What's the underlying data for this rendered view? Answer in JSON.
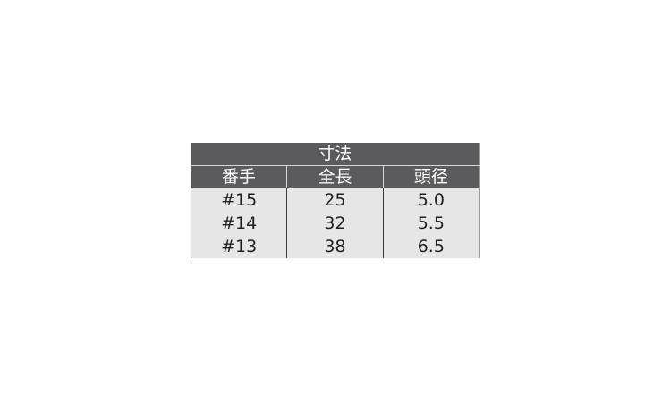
{
  "table": {
    "title": "寸法",
    "headers": [
      "番手",
      "全長",
      "頭径"
    ],
    "rows": [
      [
        "#15",
        "25",
        "5.0"
      ],
      [
        "#14",
        "32",
        "5.5"
      ],
      [
        "#13",
        "38",
        "6.5"
      ]
    ]
  }
}
